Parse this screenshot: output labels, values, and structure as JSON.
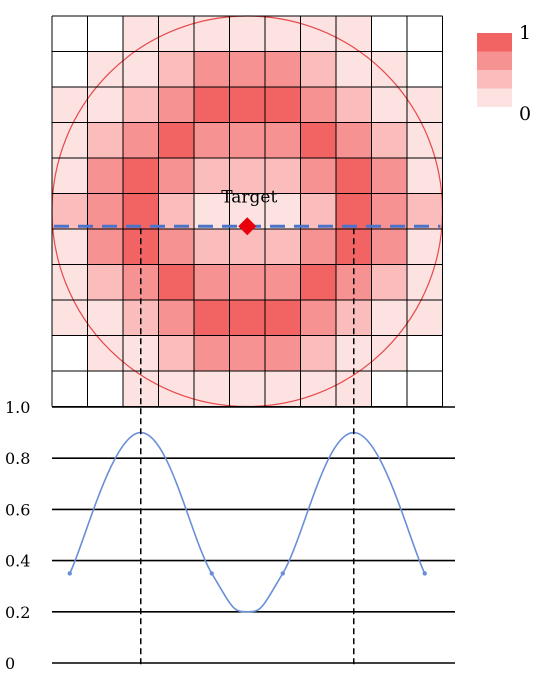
{
  "grid": {
    "rows": 11,
    "cols": 11,
    "cells": [
      [
        0,
        0,
        1,
        1,
        1,
        1,
        1,
        1,
        1,
        0,
        0
      ],
      [
        0,
        1,
        1,
        2,
        3,
        3,
        3,
        2,
        1,
        1,
        0
      ],
      [
        1,
        1,
        2,
        3,
        4,
        4,
        4,
        3,
        2,
        1,
        1
      ],
      [
        1,
        2,
        3,
        4,
        3,
        3,
        3,
        4,
        3,
        2,
        1
      ],
      [
        1,
        3,
        4,
        3,
        2,
        2,
        2,
        3,
        4,
        3,
        1
      ],
      [
        2,
        3,
        4,
        2,
        1,
        1,
        1,
        2,
        4,
        3,
        2
      ],
      [
        1,
        3,
        4,
        3,
        2,
        2,
        2,
        3,
        4,
        3,
        1
      ],
      [
        1,
        2,
        3,
        4,
        3,
        3,
        3,
        4,
        3,
        2,
        1
      ],
      [
        1,
        1,
        2,
        3,
        4,
        4,
        4,
        3,
        2,
        1,
        1
      ],
      [
        0,
        1,
        1,
        2,
        3,
        3,
        3,
        2,
        1,
        1,
        0
      ],
      [
        0,
        0,
        1,
        1,
        1,
        1,
        1,
        1,
        1,
        0,
        0
      ]
    ],
    "level_colors": [
      "#ffffff",
      "#fde2e2",
      "#fbbcbc",
      "#f79292",
      "#f26464"
    ],
    "circle_color": "#e64a4a",
    "target_label": "Target",
    "target_color": "#e8000b",
    "scanline_color": "#4a74c9"
  },
  "legend": {
    "levels": [
      "#f26464",
      "#f79292",
      "#fbbcbc",
      "#fde2e2"
    ],
    "max_label": "1",
    "min_label": "0"
  },
  "chart_data": {
    "type": "line",
    "yticks": [
      "1.0",
      "0.8",
      "0.6",
      "0.4",
      "0.2",
      "0"
    ],
    "ylim": [
      0,
      1.0
    ],
    "xlim": [
      0,
      11
    ],
    "points": [
      {
        "x": 0.5,
        "y": 0.35
      },
      {
        "x": 2.5,
        "y": 0.9
      },
      {
        "x": 4.5,
        "y": 0.35
      },
      {
        "x": 5.5,
        "y": 0.2
      },
      {
        "x": 6.5,
        "y": 0.35
      },
      {
        "x": 8.5,
        "y": 0.9
      },
      {
        "x": 10.5,
        "y": 0.35
      }
    ],
    "peak_markers_x": [
      2.5,
      8.5
    ],
    "line_color": "#6a8fd8"
  }
}
